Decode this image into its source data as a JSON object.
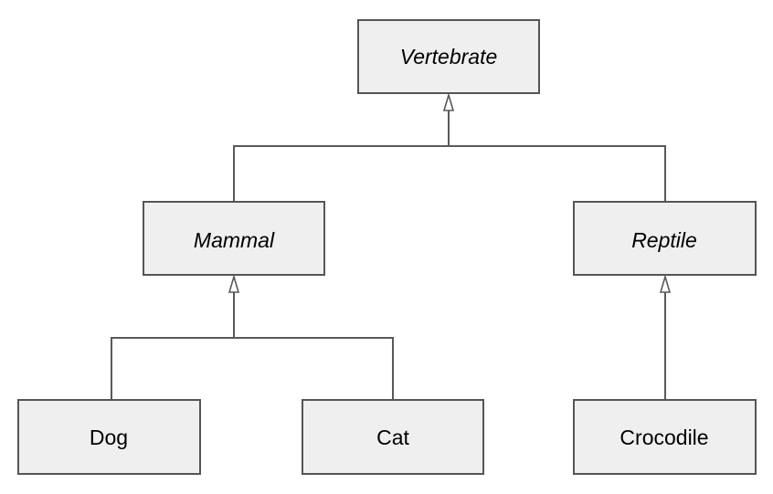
{
  "diagram": {
    "type": "class-inheritance-hierarchy",
    "colors": {
      "box_fill": "#efefef",
      "box_stroke": "#555555",
      "connector": "#595959"
    },
    "nodes": [
      {
        "id": "vertebrate",
        "label": "Vertebrate",
        "abstract": true
      },
      {
        "id": "mammal",
        "label": "Mammal",
        "abstract": true
      },
      {
        "id": "reptile",
        "label": "Reptile",
        "abstract": true
      },
      {
        "id": "dog",
        "label": "Dog",
        "abstract": false
      },
      {
        "id": "cat",
        "label": "Cat",
        "abstract": false
      },
      {
        "id": "crocodile",
        "label": "Crocodile",
        "abstract": false
      }
    ],
    "edges": [
      {
        "from": "mammal",
        "to": "vertebrate",
        "kind": "generalization"
      },
      {
        "from": "reptile",
        "to": "vertebrate",
        "kind": "generalization"
      },
      {
        "from": "dog",
        "to": "mammal",
        "kind": "generalization"
      },
      {
        "from": "cat",
        "to": "mammal",
        "kind": "generalization"
      },
      {
        "from": "crocodile",
        "to": "reptile",
        "kind": "generalization"
      }
    ]
  }
}
